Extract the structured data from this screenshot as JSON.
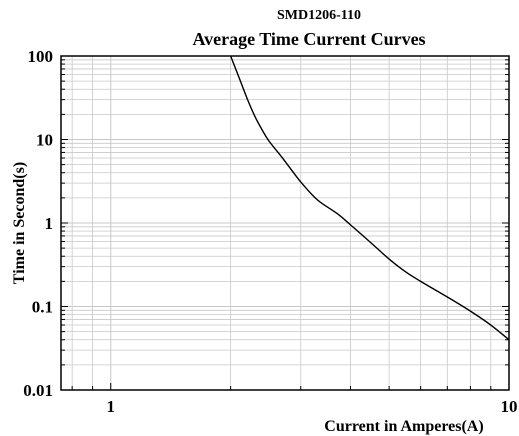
{
  "chart_data": {
    "type": "line",
    "title": "SMD1206-110",
    "subtitle": "Average Time Current Curves",
    "xlabel": "Current in Amperes(A)",
    "ylabel": "Time in Second(s)",
    "x_scale": "log",
    "y_scale": "log",
    "xlim": [
      0.75,
      10
    ],
    "ylim": [
      0.01,
      100
    ],
    "x_tick_labels": [
      {
        "value": 1,
        "label": "1"
      },
      {
        "value": 10,
        "label": "10"
      }
    ],
    "y_tick_labels": [
      {
        "value": 100,
        "label": "100"
      },
      {
        "value": 10,
        "label": "10"
      },
      {
        "value": 1,
        "label": "1"
      },
      {
        "value": 0.1,
        "label": "0.1"
      },
      {
        "value": 0.01,
        "label": "0.01"
      }
    ],
    "grid": true,
    "line_color": "#000000",
    "grid_color": "#c8c8c8",
    "series": [
      {
        "x": [
          2.0,
          2.1,
          2.2,
          2.3,
          2.4,
          2.5,
          2.7,
          3.0,
          3.3,
          3.7,
          4.0,
          4.5,
          5.0,
          5.5,
          6.0,
          7.0,
          8.0,
          9.0,
          10.0
        ],
        "y": [
          100,
          55,
          31,
          19,
          13,
          9.5,
          6.0,
          3.1,
          1.9,
          1.3,
          0.95,
          0.58,
          0.37,
          0.26,
          0.2,
          0.13,
          0.088,
          0.06,
          0.04
        ]
      }
    ]
  }
}
